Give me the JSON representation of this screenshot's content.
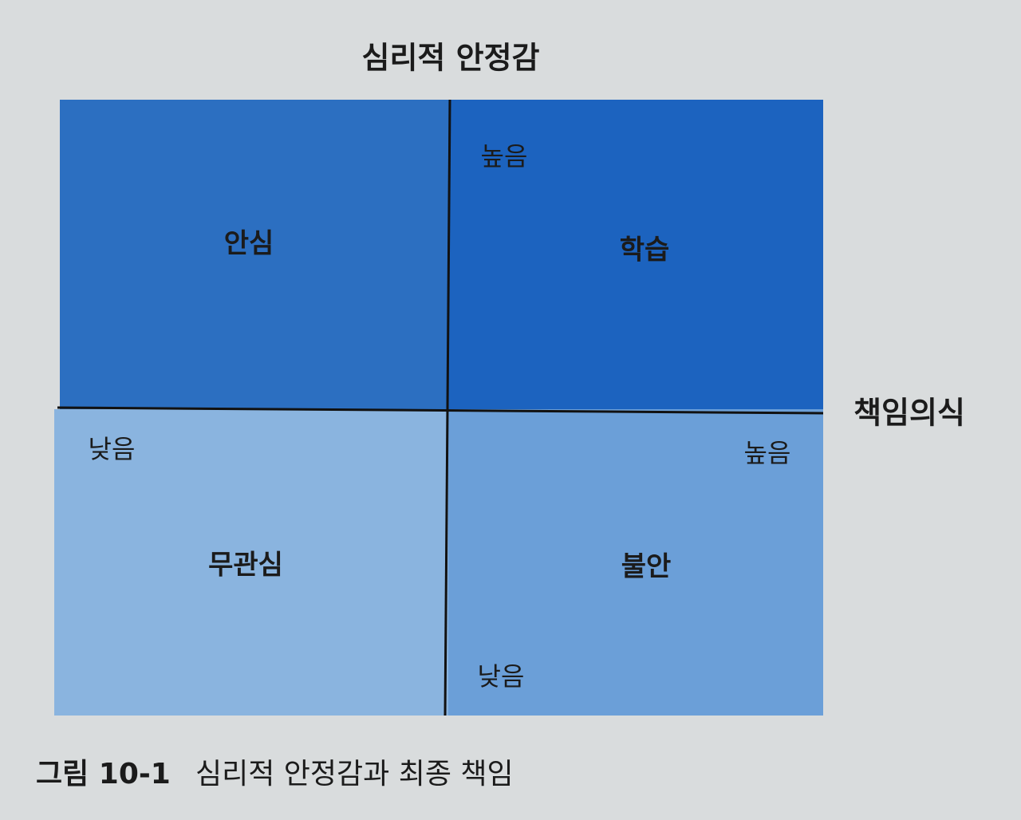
{
  "diagram": {
    "y_axis_title": "심리적 안정감",
    "x_axis_title": "책임의식",
    "y_high": "높음",
    "y_low": "낮음",
    "x_low": "낮음",
    "x_high": "높음",
    "quadrants": [
      {
        "label": "안심"
      },
      {
        "label": "학습"
      },
      {
        "label": "무관심"
      },
      {
        "label": "불안"
      }
    ]
  },
  "caption": {
    "figure": "그림 10-1",
    "title": "심리적 안정감과 최종 책임"
  }
}
